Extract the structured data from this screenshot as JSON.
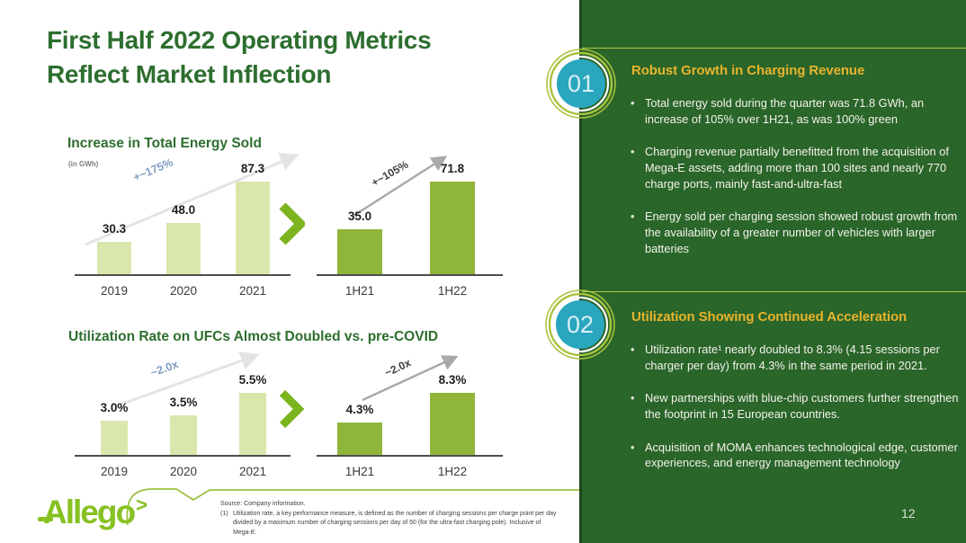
{
  "slide": {
    "title_line1": "First Half 2022 Operating Metrics",
    "title_line2": "Reflect Market Inflection",
    "page_number": "12",
    "logo_text": "Allego",
    "logo_mark": ">"
  },
  "chart_data": [
    {
      "type": "bar",
      "title": "Increase in Total Energy Sold",
      "subtitle": "(in GWh)",
      "unit": "GWh",
      "groups": [
        {
          "categories": [
            "2019",
            "2020",
            "2021"
          ],
          "values": [
            30.3,
            48.0,
            87.3
          ],
          "labels": [
            "30.3",
            "48.0",
            "87.3"
          ],
          "annotation": "+~175%",
          "bar_color": "#d9e7ac"
        },
        {
          "categories": [
            "1H21",
            "1H22"
          ],
          "values": [
            35.0,
            71.8
          ],
          "labels": [
            "35.0",
            "71.8"
          ],
          "annotation": "+~105%",
          "bar_color": "#8fb63a"
        }
      ]
    },
    {
      "type": "bar",
      "title": "Utilization Rate on UFCs Almost Doubled vs. pre-COVID",
      "subtitle": "",
      "unit": "%",
      "groups": [
        {
          "categories": [
            "2019",
            "2020",
            "2021"
          ],
          "values": [
            3.0,
            3.5,
            5.5
          ],
          "labels": [
            "3.0%",
            "3.5%",
            "5.5%"
          ],
          "annotation": "~2.0x",
          "bar_color": "#d9e7ac"
        },
        {
          "categories": [
            "1H21",
            "1H22"
          ],
          "values": [
            4.3,
            8.3
          ],
          "labels": [
            "4.3%",
            "8.3%"
          ],
          "annotation": "~2.0x",
          "bar_color": "#8fb63a"
        }
      ]
    }
  ],
  "sections": [
    {
      "number": "01",
      "heading": "Robust Growth in Charging Revenue",
      "bullets": [
        "Total energy sold during the quarter was 71.8 GWh, an increase of 105% over 1H21, as was 100% green",
        "Charging revenue partially benefitted from the acquisition of Mega-E assets, adding more than 100 sites and nearly 770 charge ports, mainly fast-and-ultra-fast",
        "Energy sold per charging session showed robust growth from the availability of a greater number of vehicles with larger batteries"
      ]
    },
    {
      "number": "02",
      "heading": "Utilization Showing Continued Acceleration",
      "bullets": [
        "Utilization rate¹ nearly doubled to 8.3% (4.15 sessions per charger per day) from 4.3% in the same period in 2021.",
        "New partnerships with blue-chip customers further strengthen the footprint in 15 European countries.",
        "Acquisition of MOMA enhances technological edge, customer experiences, and energy management technology"
      ]
    }
  ],
  "footer": {
    "source": "Source: Company information.",
    "footnote_label": "(1)",
    "footnote": "Utilization rate, a key performance measure, is defined as the number of charging sessions per charge point per day divided by a maximum number of charging sessions per day of 50 (for the ultra-fast charging pole). Inclusive of Mega-E."
  },
  "colors": {
    "panel_green": "#2a6529",
    "title_green": "#2d6e2f",
    "heading_yellow": "#e7b42e",
    "badge_teal": "#2aa6bf",
    "ring_green": "#a9c33f",
    "logo_green": "#86c121",
    "annotation_blue": "#7f9cc0",
    "bar_light": "#d9e7ac",
    "bar_dark": "#8fb63a",
    "chevron_green": "#7cb41e"
  }
}
